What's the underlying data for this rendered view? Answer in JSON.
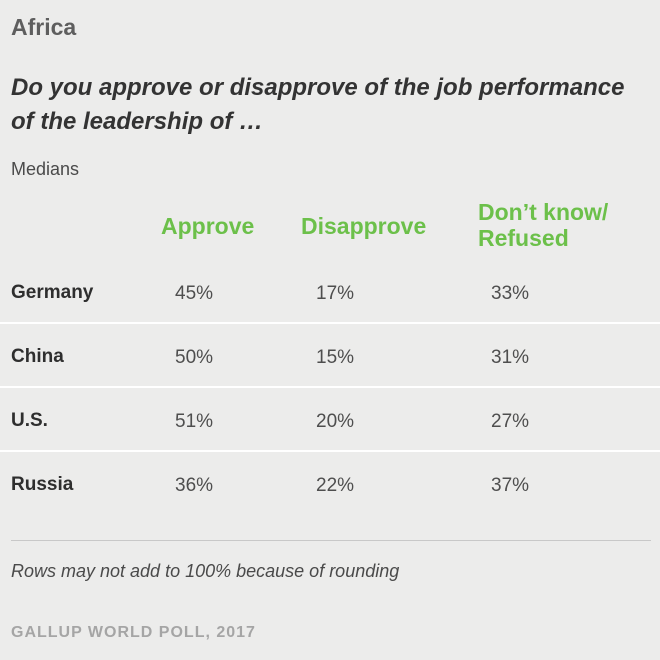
{
  "region": "Africa",
  "question": "Do you approve or disapprove of the job performance of the leadership of …",
  "subtitle": "Medians",
  "columns": [
    "Approve",
    "Disapprove",
    "Don’t know/ Refused"
  ],
  "rows": [
    {
      "country": "Germany",
      "values": [
        "45%",
        "17%",
        "33%"
      ]
    },
    {
      "country": "China",
      "values": [
        "50%",
        "15%",
        "31%"
      ]
    },
    {
      "country": "U.S.",
      "values": [
        "51%",
        "20%",
        "27%"
      ]
    },
    {
      "country": "Russia",
      "values": [
        "36%",
        "22%",
        "37%"
      ]
    }
  ],
  "note": "Rows may not add to 100% because of rounding",
  "source": "GALLUP WORLD POLL, 2017",
  "colors": {
    "header_green": "#6cc04a",
    "background": "#ececeb"
  },
  "chart_data": {
    "type": "table",
    "title": "Do you approve or disapprove of the job performance of the leadership of …",
    "columns": [
      "Approve",
      "Disapprove",
      "Don’t know/ Refused"
    ],
    "categories": [
      "Germany",
      "China",
      "U.S.",
      "Russia"
    ],
    "series": [
      {
        "name": "Approve",
        "values": [
          45,
          50,
          51,
          36
        ]
      },
      {
        "name": "Disapprove",
        "values": [
          17,
          15,
          20,
          22
        ]
      },
      {
        "name": "Don’t know/ Refused",
        "values": [
          33,
          31,
          27,
          37
        ]
      }
    ]
  }
}
